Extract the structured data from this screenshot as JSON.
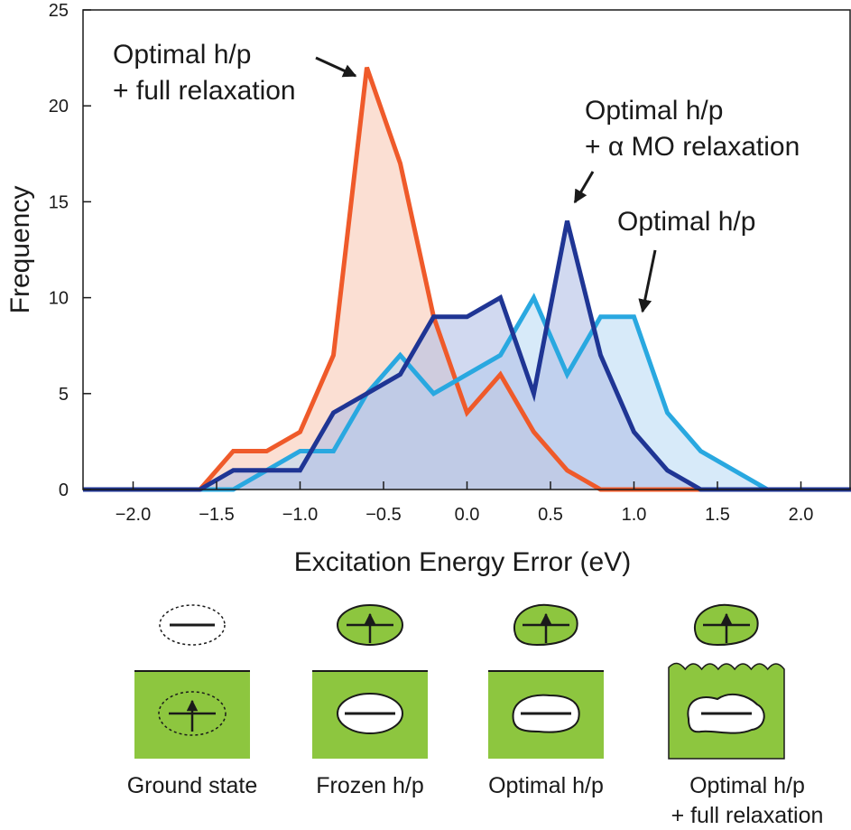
{
  "chart_data": {
    "type": "area",
    "xlabel": "Excitation Energy Error (eV)",
    "ylabel": "Frequency",
    "xlim": [
      -2.3,
      2.3
    ],
    "ylim": [
      0,
      25
    ],
    "xticks": [
      "−2.0",
      "−1.5",
      "−1.0",
      "−0.5",
      "0.0",
      "0.5",
      "1.0",
      "1.5",
      "2.0"
    ],
    "xtick_values": [
      -2.0,
      -1.5,
      -1.0,
      -0.5,
      0.0,
      0.5,
      1.0,
      1.5,
      2.0
    ],
    "yticks": [
      "0",
      "5",
      "10",
      "15",
      "20",
      "25"
    ],
    "ytick_values": [
      0,
      5,
      10,
      15,
      20,
      25
    ],
    "grid": false,
    "legend": "none",
    "series": [
      {
        "key": "full",
        "color": "#ef5a2a",
        "fill": "#f8c9b6",
        "x": [
          -2.3,
          -1.6,
          -1.4,
          -1.2,
          -1.0,
          -0.8,
          -0.6,
          -0.4,
          -0.2,
          0.0,
          0.2,
          0.4,
          0.6,
          0.8,
          2.3
        ],
        "y": [
          0,
          0,
          2,
          2,
          3,
          7,
          22,
          17,
          9,
          4,
          6,
          3,
          1,
          0,
          0
        ]
      },
      {
        "key": "optimal",
        "color": "#29a8e0",
        "fill": "#bcdcf5",
        "x": [
          -2.3,
          -1.4,
          -1.2,
          -1.0,
          -0.8,
          -0.6,
          -0.4,
          -0.2,
          0.0,
          0.2,
          0.4,
          0.6,
          0.8,
          1.0,
          1.2,
          1.4,
          1.6,
          1.8,
          2.3
        ],
        "y": [
          0,
          0,
          1,
          2,
          2,
          5,
          7,
          5,
          6,
          7,
          10,
          6,
          9,
          9,
          4,
          2,
          1,
          0,
          0
        ]
      },
      {
        "key": "alpha",
        "color": "#1f3594",
        "fill": "#b3bfe6",
        "x": [
          -2.3,
          -1.6,
          -1.4,
          -1.2,
          -1.0,
          -0.8,
          -0.6,
          -0.4,
          -0.2,
          0.0,
          0.2,
          0.4,
          0.6,
          0.8,
          1.0,
          1.2,
          1.4,
          2.3
        ],
        "y": [
          0,
          0,
          1,
          1,
          1,
          4,
          5,
          6,
          9,
          9,
          10,
          5,
          14,
          7,
          3,
          1,
          0,
          0
        ]
      }
    ],
    "annotations": [
      {
        "key": "full",
        "lines": [
          "Optimal h/p",
          "+ full relaxation"
        ],
        "target": [
          -0.6,
          22
        ]
      },
      {
        "key": "alpha",
        "lines": [
          "Optimal h/p",
          "+ α MO relaxation"
        ],
        "target": [
          0.6,
          14.5
        ]
      },
      {
        "key": "optimal",
        "lines": [
          "Optimal h/p"
        ],
        "target": [
          1.0,
          9.2
        ]
      }
    ]
  },
  "schematic": {
    "panels": [
      {
        "key": "ground",
        "label_lines": [
          "Ground state"
        ]
      },
      {
        "key": "frozen",
        "label_lines": [
          "Frozen h/p"
        ]
      },
      {
        "key": "optimal",
        "label_lines": [
          "Optimal h/p"
        ]
      },
      {
        "key": "full",
        "label_lines": [
          "Optimal h/p",
          "+ full relaxation"
        ]
      }
    ],
    "colors": {
      "green": "#8dc63f",
      "outline": "#1a1a1a"
    }
  }
}
